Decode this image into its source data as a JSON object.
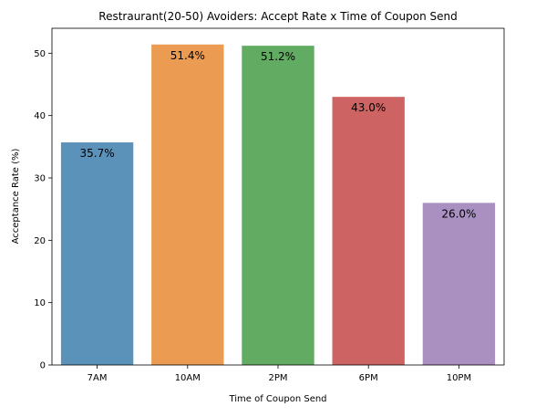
{
  "chart_data": {
    "type": "bar",
    "title": "Restraurant(20-50) Avoiders: Accept Rate x Time of Coupon Send",
    "xlabel": "Time of Coupon Send",
    "ylabel": "Acceptance Rate (%)",
    "categories": [
      "7AM",
      "10AM",
      "2PM",
      "6PM",
      "10PM"
    ],
    "values": [
      35.7,
      51.4,
      51.2,
      43.0,
      26.0
    ],
    "data_labels": [
      "35.7%",
      "51.4%",
      "51.2%",
      "43.0%",
      "26.0%"
    ],
    "colors": [
      "#5b92ba",
      "#eb9b52",
      "#62ab62",
      "#cd6363",
      "#a990c1"
    ],
    "ylim": [
      0,
      54
    ],
    "yticks": [
      0,
      10,
      20,
      30,
      40,
      50
    ],
    "grid": false,
    "legend": "none"
  }
}
